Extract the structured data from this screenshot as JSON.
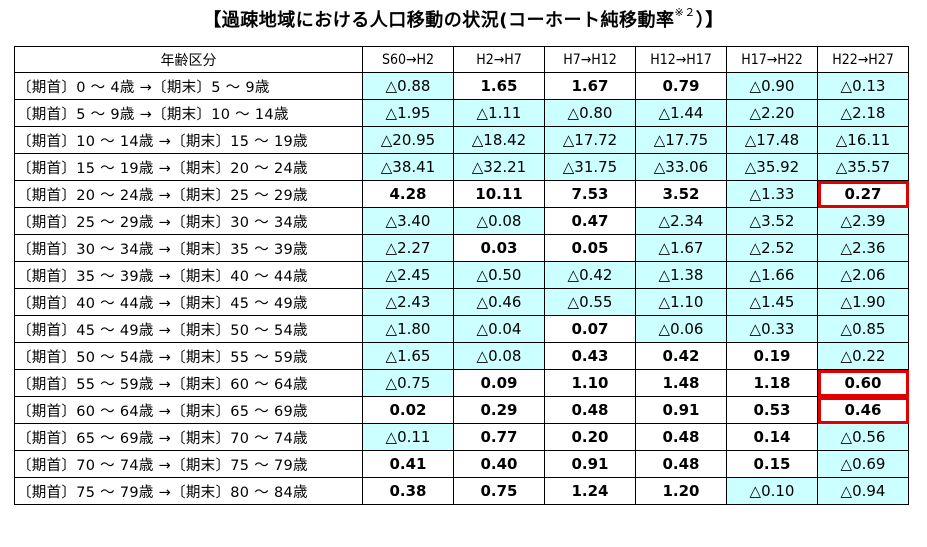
{
  "title": "【過疎地域における人口移動の状況(コーホート純移動率",
  "title_note": "※２",
  "title_end": "）】",
  "colors": {
    "negative_fill": "#ccffff",
    "highlight_border": "#e00000"
  },
  "table": {
    "header": [
      "年齢区分",
      "S60→H2",
      "H2→H7",
      "H7→H12",
      "H12→H17",
      "H17→H22",
      "H22→H27"
    ],
    "rows": [
      {
        "label": "〔期首〕0 ～ 4歳 →〔期末〕5 ～ 9歳",
        "values": [
          "△0.88",
          "1.65",
          "1.67",
          "0.79",
          "△0.90",
          "△0.13"
        ]
      },
      {
        "label": "〔期首〕5 ～ 9歳 →〔期末〕10 ～ 14歳",
        "values": [
          "△1.95",
          "△1.11",
          "△0.80",
          "△1.44",
          "△2.20",
          "△2.18"
        ]
      },
      {
        "label": "〔期首〕10 ～ 14歳 →〔期末〕15 ～ 19歳",
        "values": [
          "△20.95",
          "△18.42",
          "△17.72",
          "△17.75",
          "△17.48",
          "△16.11"
        ]
      },
      {
        "label": "〔期首〕15 ～ 19歳 →〔期末〕20 ～ 24歳",
        "values": [
          "△38.41",
          "△32.21",
          "△31.75",
          "△33.06",
          "△35.92",
          "△35.57"
        ]
      },
      {
        "label": "〔期首〕20 ～ 24歳 →〔期末〕25 ～ 29歳",
        "values": [
          "4.28",
          "10.11",
          "7.53",
          "3.52",
          "△1.33",
          "0.27"
        ]
      },
      {
        "label": "〔期首〕25 ～ 29歳 →〔期末〕30 ～ 34歳",
        "values": [
          "△3.40",
          "△0.08",
          "0.47",
          "△2.34",
          "△3.52",
          "△2.39"
        ]
      },
      {
        "label": "〔期首〕30 ～ 34歳 →〔期末〕35 ～ 39歳",
        "values": [
          "△2.27",
          "0.03",
          "0.05",
          "△1.67",
          "△2.52",
          "△2.36"
        ]
      },
      {
        "label": "〔期首〕35 ～ 39歳 →〔期末〕40 ～ 44歳",
        "values": [
          "△2.45",
          "△0.50",
          "△0.42",
          "△1.38",
          "△1.66",
          "△2.06"
        ]
      },
      {
        "label": "〔期首〕40 ～ 44歳 →〔期末〕45 ～ 49歳",
        "values": [
          "△2.43",
          "△0.46",
          "△0.55",
          "△1.10",
          "△1.45",
          "△1.90"
        ]
      },
      {
        "label": "〔期首〕45 ～ 49歳 →〔期末〕50 ～ 54歳",
        "values": [
          "△1.80",
          "△0.04",
          "0.07",
          "△0.06",
          "△0.33",
          "△0.85"
        ]
      },
      {
        "label": "〔期首〕50 ～ 54歳 →〔期末〕55 ～ 59歳",
        "values": [
          "△1.65",
          "△0.08",
          "0.43",
          "0.42",
          "0.19",
          "△0.22"
        ]
      },
      {
        "label": "〔期首〕55 ～ 59歳 →〔期末〕60 ～ 64歳",
        "values": [
          "△0.75",
          "0.09",
          "1.10",
          "1.48",
          "1.18",
          "0.60"
        ]
      },
      {
        "label": "〔期首〕60 ～ 64歳 →〔期末〕65 ～ 69歳",
        "values": [
          "0.02",
          "0.29",
          "0.48",
          "0.91",
          "0.53",
          "0.46"
        ]
      },
      {
        "label": "〔期首〕65 ～ 69歳 →〔期末〕70 ～ 74歳",
        "values": [
          "△0.11",
          "0.77",
          "0.20",
          "0.48",
          "0.14",
          "△0.56"
        ]
      },
      {
        "label": "〔期首〕70 ～ 74歳 →〔期末〕75 ～ 79歳",
        "values": [
          "0.41",
          "0.40",
          "0.91",
          "0.48",
          "0.15",
          "△0.69"
        ]
      },
      {
        "label": "〔期首〕75 ～ 79歳 →〔期末〕80 ～ 84歳",
        "values": [
          "0.38",
          "0.75",
          "1.24",
          "1.20",
          "△0.10",
          "△0.94"
        ]
      }
    ],
    "highlighted_cells": [
      {
        "row": 4,
        "col": 5
      },
      {
        "row": 11,
        "col": 5
      },
      {
        "row": 12,
        "col": 5
      }
    ]
  }
}
